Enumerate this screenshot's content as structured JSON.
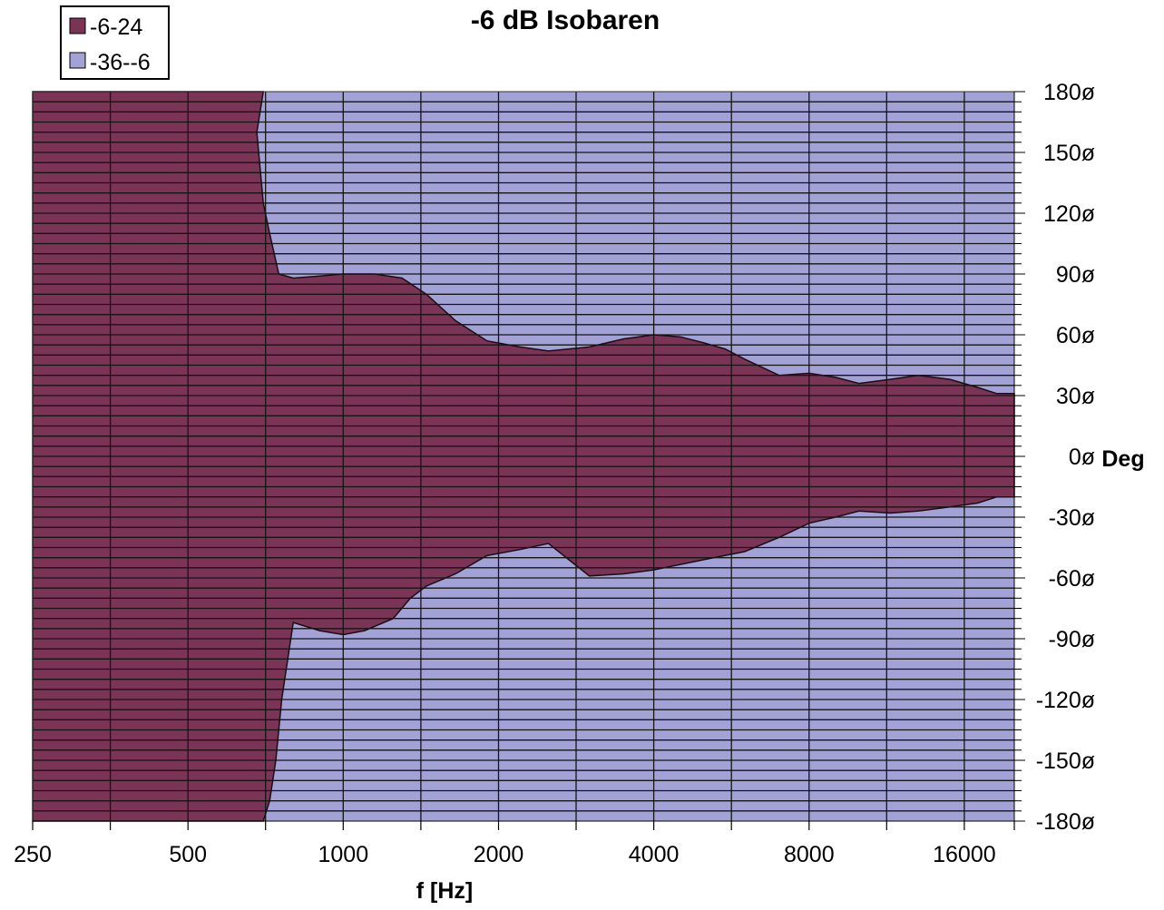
{
  "chart_data": {
    "type": "heatmap",
    "title": "-6 dB Isobaren",
    "xlabel": "f [Hz]",
    "ylabel": "Deg",
    "x_scale": "log2",
    "xlim": [
      250,
      20000
    ],
    "ylim": [
      -180,
      180
    ],
    "x_tick_labels": [
      "250",
      "500",
      "1000",
      "2000",
      "4000",
      "8000",
      "16000"
    ],
    "x_tick_values": [
      250,
      500,
      1000,
      2000,
      4000,
      8000,
      16000
    ],
    "y_tick_labels": [
      "180ø",
      "150ø",
      "120ø",
      "90ø",
      "60ø",
      "30ø",
      "0ø",
      "-30ø",
      "-60ø",
      "-90ø",
      "-120ø",
      "-150ø",
      "-180ø"
    ],
    "y_tick_values": [
      180,
      150,
      120,
      90,
      60,
      30,
      0,
      -30,
      -60,
      -90,
      -120,
      -150,
      -180
    ],
    "legend": {
      "placement": "top-left",
      "entries": [
        {
          "label": "-6-24",
          "color": "#7b3456"
        },
        {
          "label": "-36--6",
          "color": "#a3a2d6"
        }
      ]
    },
    "colors": {
      "inside": "#7b3456",
      "outside": "#a3a2d6"
    },
    "grid": true,
    "boundary_upper": {
      "x": [
        250,
        700,
        690,
        680,
        700,
        720,
        750,
        800,
        900,
        1000,
        1150,
        1300,
        1450,
        1650,
        1900,
        2200,
        2500,
        3000,
        3500,
        4000,
        4500,
        5000,
        5500,
        6000,
        7000,
        8000,
        9000,
        10000,
        11500,
        13000,
        15000,
        17000,
        18500
      ],
      "y": [
        180,
        180,
        170,
        160,
        125,
        110,
        90,
        88,
        89,
        90,
        90,
        88,
        80,
        67,
        57,
        54,
        52,
        54,
        58,
        60,
        59,
        56,
        53,
        48,
        40,
        41,
        39,
        36,
        38,
        40,
        38,
        34,
        31
      ]
    },
    "boundary_lower": {
      "x": [
        250,
        700,
        720,
        740,
        760,
        800,
        900,
        1000,
        1100,
        1250,
        1350,
        1450,
        1650,
        1900,
        2200,
        2500,
        3000,
        3500,
        4000,
        5000,
        6000,
        7000,
        8000,
        9000,
        10000,
        11500,
        13000,
        15000,
        17000,
        18500
      ],
      "y": [
        -180,
        -180,
        -170,
        -150,
        -120,
        -82,
        -86,
        -88,
        -86,
        -80,
        -70,
        -64,
        -58,
        -49,
        -46,
        -43,
        -59,
        -58,
        -56,
        -51,
        -47,
        -40,
        -33,
        -30,
        -27,
        -28,
        -27,
        -25,
        -23,
        -20
      ]
    },
    "annotations": []
  }
}
